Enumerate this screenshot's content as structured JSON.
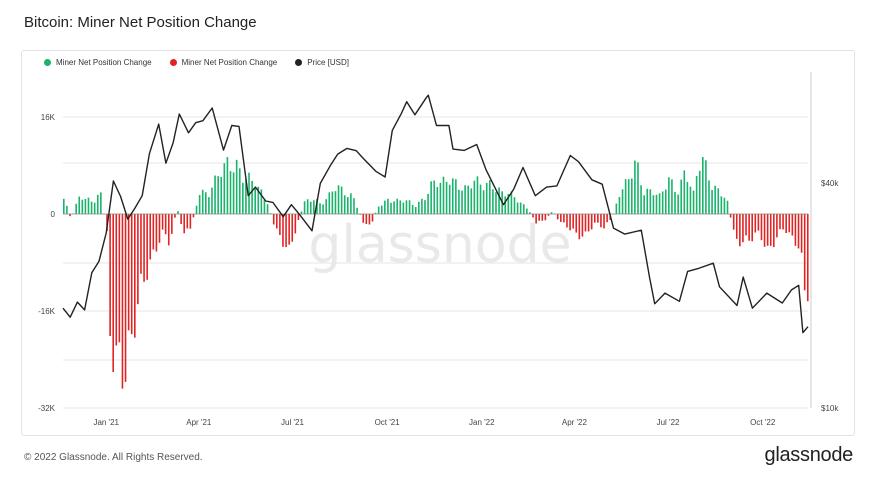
{
  "title": "Bitcoin: Miner Net Position Change",
  "footer": {
    "copyright": "© 2022 Glassnode. All Rights Reserved.",
    "logo": "glassnode"
  },
  "watermark": "glassnode",
  "colors": {
    "positive": "#19b36b",
    "negative": "#e02424",
    "price": "#222222",
    "grid": "#e6e6e6"
  },
  "legend": [
    {
      "label": "Miner Net Position Change",
      "color": "#19b36b"
    },
    {
      "label": "Miner Net Position Change",
      "color": "#e02424"
    },
    {
      "label": "Price [USD]",
      "color": "#222222"
    }
  ],
  "chart_data": {
    "type": "bar",
    "grid": true,
    "legend_position": "top-left",
    "x_range": [
      "2020-11-20",
      "2022-11-14"
    ],
    "x_ticks": [
      {
        "label": "Jan '21",
        "date": "2021-01-01"
      },
      {
        "label": "Apr '21",
        "date": "2021-04-01"
      },
      {
        "label": "Jul '21",
        "date": "2021-07-01"
      },
      {
        "label": "Oct '21",
        "date": "2021-10-01"
      },
      {
        "label": "Jan '22",
        "date": "2022-01-01"
      },
      {
        "label": "Apr '22",
        "date": "2022-04-01"
      },
      {
        "label": "Jul '22",
        "date": "2022-07-01"
      },
      {
        "label": "Oct '22",
        "date": "2022-10-01"
      }
    ],
    "y_left": {
      "range": [
        -32000,
        32000
      ],
      "ticks": [
        {
          "label": "16K",
          "value": 16000
        },
        {
          "label": "0",
          "value": 0
        },
        {
          "label": "-16K",
          "value": -16000
        },
        {
          "label": "-32K",
          "value": -32000
        }
      ]
    },
    "y_right": {
      "scale": "log",
      "range": [
        10000,
        90000
      ],
      "ticks": [
        {
          "label": "$40k",
          "value": 40000
        },
        {
          "label": "$10k",
          "value": 10000
        }
      ]
    },
    "series": [
      {
        "name": "Miner Net Position Change",
        "axis": "left",
        "points": [
          [
            "2020-11-20",
            2500
          ],
          [
            "2020-11-27",
            -800
          ],
          [
            "2020-12-04",
            2300
          ],
          [
            "2020-12-11",
            3000
          ],
          [
            "2020-12-18",
            2000
          ],
          [
            "2020-12-25",
            4000
          ],
          [
            "2021-01-01",
            -3000
          ],
          [
            "2021-01-04",
            -17000
          ],
          [
            "2021-01-08",
            -22000
          ],
          [
            "2021-01-12",
            -24000
          ],
          [
            "2021-01-16",
            -27000
          ],
          [
            "2021-01-20",
            -28500
          ],
          [
            "2021-01-24",
            -25000
          ],
          [
            "2021-01-28",
            -18000
          ],
          [
            "2021-02-03",
            -11000
          ],
          [
            "2021-02-10",
            -8000
          ],
          [
            "2021-02-17",
            -6000
          ],
          [
            "2021-02-24",
            -3500
          ],
          [
            "2021-03-03",
            -5000
          ],
          [
            "2021-03-10",
            1000
          ],
          [
            "2021-03-17",
            -3000
          ],
          [
            "2021-03-24",
            -2000
          ],
          [
            "2021-04-01",
            4000
          ],
          [
            "2021-04-10",
            3500
          ],
          [
            "2021-04-20",
            6000
          ],
          [
            "2021-04-28",
            8000
          ],
          [
            "2021-05-06",
            9000
          ],
          [
            "2021-05-14",
            6500
          ],
          [
            "2021-05-22",
            5000
          ],
          [
            "2021-05-30",
            3500
          ],
          [
            "2021-06-06",
            2000
          ],
          [
            "2021-06-14",
            -3000
          ],
          [
            "2021-06-20",
            -4500
          ],
          [
            "2021-06-27",
            -5500
          ],
          [
            "2021-07-04",
            -2000
          ],
          [
            "2021-07-12",
            2000
          ],
          [
            "2021-07-20",
            3000
          ],
          [
            "2021-07-28",
            1500
          ],
          [
            "2021-08-04",
            2500
          ],
          [
            "2021-08-12",
            4500
          ],
          [
            "2021-08-20",
            4000
          ],
          [
            "2021-08-28",
            3000
          ],
          [
            "2021-09-06",
            -1000
          ],
          [
            "2021-09-14",
            -2000
          ],
          [
            "2021-09-22",
            1500
          ],
          [
            "2021-10-01",
            2500
          ],
          [
            "2021-10-10",
            2000
          ],
          [
            "2021-10-20",
            2000
          ],
          [
            "2021-10-28",
            1500
          ],
          [
            "2021-11-06",
            3000
          ],
          [
            "2021-11-14",
            5000
          ],
          [
            "2021-11-22",
            4500
          ],
          [
            "2021-11-30",
            6000
          ],
          [
            "2021-12-08",
            5500
          ],
          [
            "2021-12-16",
            4000
          ],
          [
            "2021-12-24",
            5000
          ],
          [
            "2022-01-01",
            4500
          ],
          [
            "2022-01-10",
            5500
          ],
          [
            "2022-01-20",
            3500
          ],
          [
            "2022-01-28",
            3000
          ],
          [
            "2022-02-05",
            2000
          ],
          [
            "2022-02-14",
            1000
          ],
          [
            "2022-02-22",
            -1500
          ],
          [
            "2022-03-02",
            -1000
          ],
          [
            "2022-03-10",
            500
          ],
          [
            "2022-03-18",
            -1500
          ],
          [
            "2022-03-26",
            -2500
          ],
          [
            "2022-04-03",
            -3500
          ],
          [
            "2022-04-12",
            -3000
          ],
          [
            "2022-04-20",
            -1500
          ],
          [
            "2022-04-28",
            -2500
          ],
          [
            "2022-05-06",
            -1000
          ],
          [
            "2022-05-14",
            3000
          ],
          [
            "2022-05-22",
            5000
          ],
          [
            "2022-05-30",
            9500
          ],
          [
            "2022-06-07",
            4000
          ],
          [
            "2022-06-15",
            3500
          ],
          [
            "2022-06-23",
            2500
          ],
          [
            "2022-07-01",
            6000
          ],
          [
            "2022-07-09",
            4000
          ],
          [
            "2022-07-17",
            7000
          ],
          [
            "2022-07-25",
            3000
          ],
          [
            "2022-08-02",
            9500
          ],
          [
            "2022-08-10",
            6000
          ],
          [
            "2022-08-18",
            4000
          ],
          [
            "2022-08-26",
            2500
          ],
          [
            "2022-09-03",
            -3500
          ],
          [
            "2022-09-11",
            -5000
          ],
          [
            "2022-09-19",
            -4500
          ],
          [
            "2022-09-27",
            -3000
          ],
          [
            "2022-10-05",
            -5500
          ],
          [
            "2022-10-13",
            -4000
          ],
          [
            "2022-10-21",
            -2500
          ],
          [
            "2022-10-29",
            -4500
          ],
          [
            "2022-11-06",
            -5000
          ],
          [
            "2022-11-10",
            -12000
          ],
          [
            "2022-11-14",
            -11000
          ]
        ]
      },
      {
        "name": "Price [USD]",
        "axis": "right",
        "points": [
          [
            "2020-11-20",
            18500
          ],
          [
            "2020-11-27",
            17500
          ],
          [
            "2020-12-04",
            19200
          ],
          [
            "2020-12-11",
            18300
          ],
          [
            "2020-12-18",
            23000
          ],
          [
            "2020-12-25",
            24700
          ],
          [
            "2021-01-01",
            29400
          ],
          [
            "2021-01-08",
            40500
          ],
          [
            "2021-01-15",
            36800
          ],
          [
            "2021-01-22",
            32000
          ],
          [
            "2021-01-29",
            34300
          ],
          [
            "2021-02-05",
            37000
          ],
          [
            "2021-02-12",
            47900
          ],
          [
            "2021-02-21",
            57500
          ],
          [
            "2021-02-28",
            45200
          ],
          [
            "2021-03-07",
            51200
          ],
          [
            "2021-03-13",
            61200
          ],
          [
            "2021-03-22",
            54500
          ],
          [
            "2021-03-29",
            58000
          ],
          [
            "2021-04-05",
            58700
          ],
          [
            "2021-04-14",
            63500
          ],
          [
            "2021-04-25",
            49000
          ],
          [
            "2021-05-03",
            57000
          ],
          [
            "2021-05-10",
            56700
          ],
          [
            "2021-05-19",
            37000
          ],
          [
            "2021-05-26",
            39000
          ],
          [
            "2021-06-05",
            35800
          ],
          [
            "2021-06-12",
            35500
          ],
          [
            "2021-06-22",
            32500
          ],
          [
            "2021-06-30",
            35000
          ],
          [
            "2021-07-08",
            32900
          ],
          [
            "2021-07-20",
            29800
          ],
          [
            "2021-07-28",
            39900
          ],
          [
            "2021-08-07",
            44600
          ],
          [
            "2021-08-14",
            47800
          ],
          [
            "2021-08-23",
            49500
          ],
          [
            "2021-09-01",
            48800
          ],
          [
            "2021-09-07",
            46800
          ],
          [
            "2021-09-20",
            43000
          ],
          [
            "2021-09-29",
            41500
          ],
          [
            "2021-10-06",
            55300
          ],
          [
            "2021-10-15",
            61500
          ],
          [
            "2021-10-20",
            66000
          ],
          [
            "2021-10-28",
            60900
          ],
          [
            "2021-11-08",
            67600
          ],
          [
            "2021-11-10",
            68700
          ],
          [
            "2021-11-18",
            57000
          ],
          [
            "2021-11-30",
            57000
          ],
          [
            "2021-12-04",
            49300
          ],
          [
            "2021-12-15",
            48900
          ],
          [
            "2021-12-27",
            50700
          ],
          [
            "2022-01-05",
            43500
          ],
          [
            "2022-01-22",
            35000
          ],
          [
            "2022-02-01",
            38500
          ],
          [
            "2022-02-10",
            44000
          ],
          [
            "2022-02-22",
            37000
          ],
          [
            "2022-03-05",
            39000
          ],
          [
            "2022-03-15",
            39300
          ],
          [
            "2022-03-28",
            47400
          ],
          [
            "2022-04-05",
            45600
          ],
          [
            "2022-04-18",
            40800
          ],
          [
            "2022-04-28",
            39700
          ],
          [
            "2022-05-09",
            30300
          ],
          [
            "2022-05-20",
            29200
          ],
          [
            "2022-06-05",
            29900
          ],
          [
            "2022-06-13",
            22400
          ],
          [
            "2022-06-18",
            19000
          ],
          [
            "2022-06-28",
            20300
          ],
          [
            "2022-07-12",
            19300
          ],
          [
            "2022-07-20",
            23200
          ],
          [
            "2022-07-30",
            23600
          ],
          [
            "2022-08-14",
            24400
          ],
          [
            "2022-08-20",
            21100
          ],
          [
            "2022-09-06",
            18800
          ],
          [
            "2022-09-12",
            22400
          ],
          [
            "2022-09-21",
            18500
          ],
          [
            "2022-10-05",
            20300
          ],
          [
            "2022-10-20",
            19100
          ],
          [
            "2022-10-29",
            20700
          ],
          [
            "2022-11-05",
            21300
          ],
          [
            "2022-11-09",
            15900
          ],
          [
            "2022-11-14",
            16500
          ]
        ]
      }
    ]
  }
}
